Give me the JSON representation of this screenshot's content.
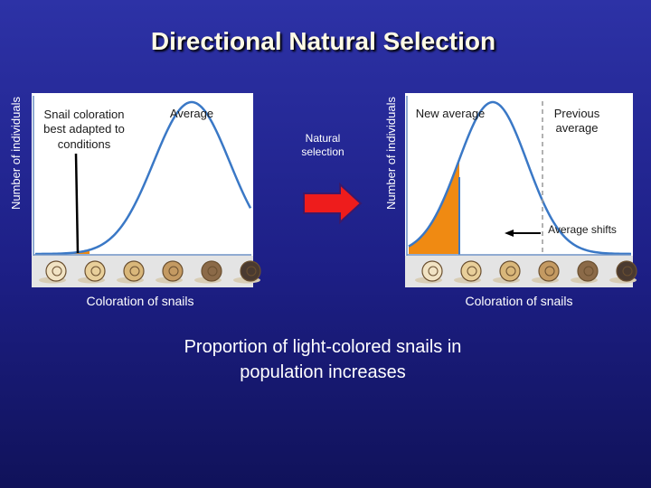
{
  "title": "Directional Natural Selection",
  "left_panel": {
    "y_label": "Number of individuals",
    "pointer_label": "Snail coloration best adapted to conditions",
    "average_label": "Average",
    "x_label": "Coloration of snails"
  },
  "middle_label": "Natural selection",
  "right_panel": {
    "y_label": "Number of individuals",
    "new_average_label": "New average",
    "previous_average_label": "Previous average",
    "shift_label": "Average shifts",
    "x_label": "Coloration of snails"
  },
  "caption": "Proportion of light-colored snails in population increases"
}
